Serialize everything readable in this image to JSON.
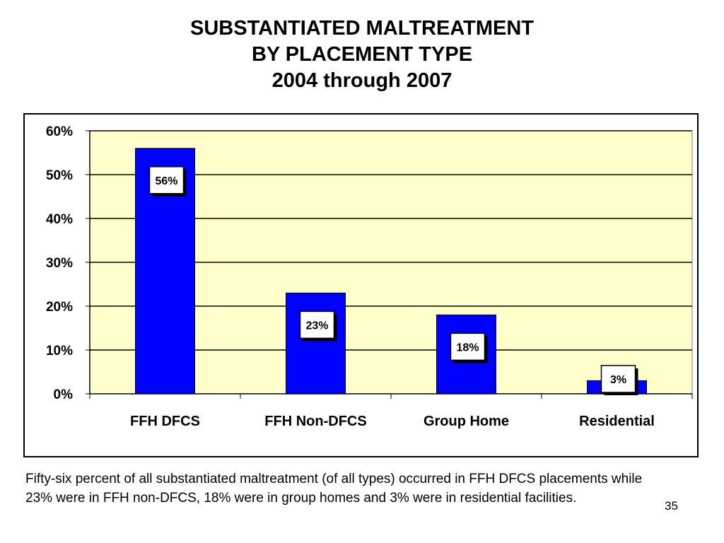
{
  "slide": {
    "title_lines": [
      "SUBSTANTIATED MALTREATMENT",
      "BY PLACEMENT TYPE",
      "2004 through 2007"
    ],
    "caption": "Fifty-six percent of all substantiated maltreatment (of all types) occurred in FFH DFCS placements while 23% were in FFH non-DFCS, 18% were in group homes and 3% were in residential facilities.",
    "page_number": "35"
  },
  "chart_data": {
    "type": "bar",
    "categories": [
      "FFH DFCS",
      "FFH Non-DFCS",
      "Group Home",
      "Residential"
    ],
    "values": [
      56,
      23,
      18,
      3
    ],
    "data_labels": [
      "56%",
      "23%",
      "18%",
      "3%"
    ],
    "ylim": [
      0,
      60
    ],
    "yticks": [
      0,
      10,
      20,
      30,
      40,
      50,
      60
    ],
    "ytick_labels": [
      "0%",
      "10%",
      "20%",
      "30%",
      "40%",
      "50%",
      "60%"
    ],
    "grid": true,
    "legend": "none",
    "colors": {
      "bar": "#0000ff",
      "plot_background": "#ffffcc",
      "label_box": "#ffffff"
    }
  }
}
